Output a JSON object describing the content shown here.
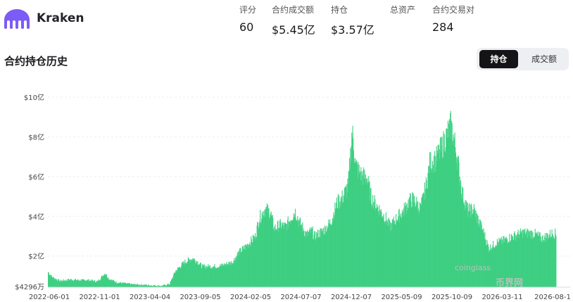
{
  "header": {
    "exchange_name": "Kraken",
    "stats": [
      {
        "label": "评分",
        "value": "60"
      },
      {
        "label": "合约成交额",
        "value": "$5.45亿"
      },
      {
        "label": "持仓",
        "value": "$3.57亿"
      },
      {
        "label": "总资产",
        "value": ""
      },
      {
        "label": "合约交易对",
        "value": "284"
      }
    ]
  },
  "section": {
    "title": "合约持仓历史"
  },
  "toggle": {
    "open_interest": "持仓",
    "volume": "成交额"
  },
  "watermark": {
    "text1": "coinglass",
    "text2": "币界网"
  },
  "colors": {
    "bar": "#3ecf83",
    "logo": "#7b5cf5"
  },
  "chart_data": {
    "type": "bar",
    "title": "",
    "xlabel": "",
    "ylabel": "",
    "ylim_label_bottom": "$4296万",
    "ytick_labels": [
      "$10亿",
      "$8亿",
      "$6亿",
      "$4亿",
      "$2亿"
    ],
    "ytick_values": [
      1000,
      800,
      600,
      400,
      200
    ],
    "ylim": [
      42.96,
      1000
    ],
    "xtick_labels": [
      "2022-06-01",
      "2022-11-01",
      "2023-04-04",
      "2023-09-05",
      "2024-02-05",
      "2024-07-07",
      "2024-12-07",
      "2025-05-09",
      "2025-10-09",
      "2026-03-11",
      "2026-08-1"
    ],
    "series": [
      {
        "values": [
          [
            0,
            120
          ],
          [
            0.1,
            95
          ],
          [
            0.3,
            75
          ],
          [
            0.6,
            82
          ],
          [
            0.9,
            78
          ],
          [
            1.0,
            80
          ],
          [
            1.3,
            72
          ],
          [
            1.5,
            115
          ],
          [
            1.6,
            85
          ],
          [
            1.8,
            68
          ],
          [
            2.2,
            58
          ],
          [
            2.5,
            55
          ],
          [
            2.8,
            52
          ],
          [
            3.0,
            50
          ],
          [
            3.2,
            60
          ],
          [
            3.35,
            125
          ],
          [
            3.6,
            172
          ],
          [
            3.8,
            190
          ],
          [
            3.95,
            170
          ],
          [
            4.05,
            148
          ],
          [
            4.5,
            150
          ],
          [
            4.85,
            170
          ],
          [
            5.0,
            215
          ],
          [
            5.2,
            250
          ],
          [
            5.45,
            300
          ],
          [
            5.55,
            390
          ],
          [
            5.7,
            440
          ],
          [
            5.85,
            425
          ],
          [
            5.95,
            340
          ],
          [
            6.1,
            360
          ],
          [
            6.25,
            350
          ],
          [
            6.4,
            400
          ],
          [
            6.5,
            430
          ],
          [
            6.6,
            380
          ],
          [
            6.8,
            310
          ],
          [
            6.95,
            330
          ],
          [
            7.0,
            300
          ],
          [
            7.3,
            340
          ],
          [
            7.45,
            380
          ],
          [
            7.6,
            470
          ],
          [
            7.75,
            500
          ],
          [
            7.9,
            560
          ],
          [
            8.0,
            840
          ],
          [
            8.1,
            660
          ],
          [
            8.25,
            610
          ],
          [
            8.4,
            600
          ],
          [
            8.5,
            500
          ],
          [
            8.6,
            470
          ],
          [
            8.75,
            430
          ],
          [
            8.9,
            390
          ],
          [
            9.0,
            350
          ],
          [
            9.2,
            400
          ],
          [
            9.35,
            430
          ],
          [
            9.5,
            480
          ],
          [
            9.6,
            490
          ],
          [
            9.7,
            470
          ],
          [
            9.8,
            440
          ],
          [
            9.95,
            560
          ],
          [
            10.05,
            680
          ],
          [
            10.2,
            690
          ],
          [
            10.35,
            750
          ],
          [
            10.5,
            820
          ],
          [
            10.6,
            870
          ],
          [
            10.7,
            780
          ],
          [
            10.8,
            660
          ],
          [
            10.9,
            520
          ],
          [
            11.05,
            430
          ],
          [
            11.2,
            440
          ],
          [
            11.35,
            370
          ],
          [
            11.45,
            330
          ],
          [
            11.6,
            240
          ],
          [
            11.8,
            270
          ],
          [
            12.0,
            280
          ],
          [
            12.2,
            300
          ],
          [
            12.5,
            320
          ],
          [
            12.8,
            315
          ],
          [
            13.0,
            290
          ],
          [
            13.2,
            310
          ],
          [
            13.3,
            320
          ],
          [
            13.38,
            310
          ]
        ]
      }
    ]
  }
}
